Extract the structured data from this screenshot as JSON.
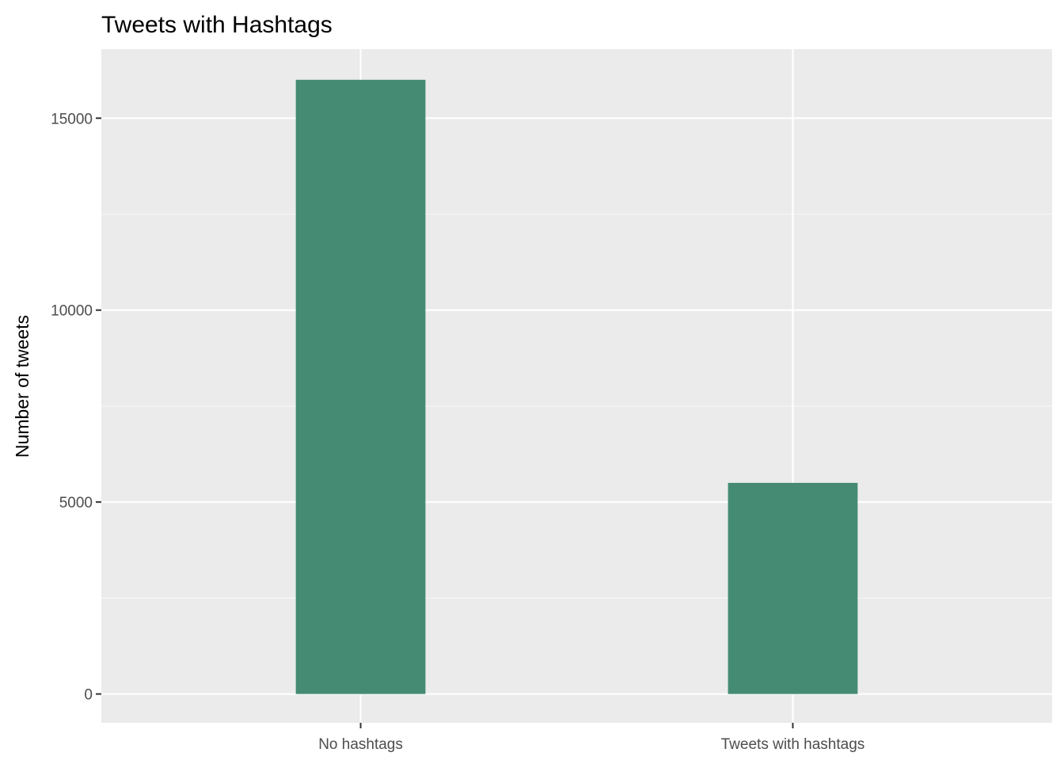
{
  "chart_data": {
    "type": "bar",
    "title": "Tweets with Hashtags",
    "xlabel": "",
    "ylabel": "Number of tweets",
    "categories": [
      "No hashtags",
      "Tweets with hashtags"
    ],
    "values": [
      16000,
      5500
    ],
    "ylim": [
      -750,
      16800
    ],
    "yticks": [
      0,
      5000,
      10000,
      15000
    ],
    "grid": true,
    "colors": {
      "bar": "#458b73",
      "panel": "#ebebeb",
      "grid_major": "#ffffff",
      "grid_minor": "#f7f7f7",
      "tick_text": "#4d4d4d",
      "tick_mark": "#333333"
    }
  }
}
